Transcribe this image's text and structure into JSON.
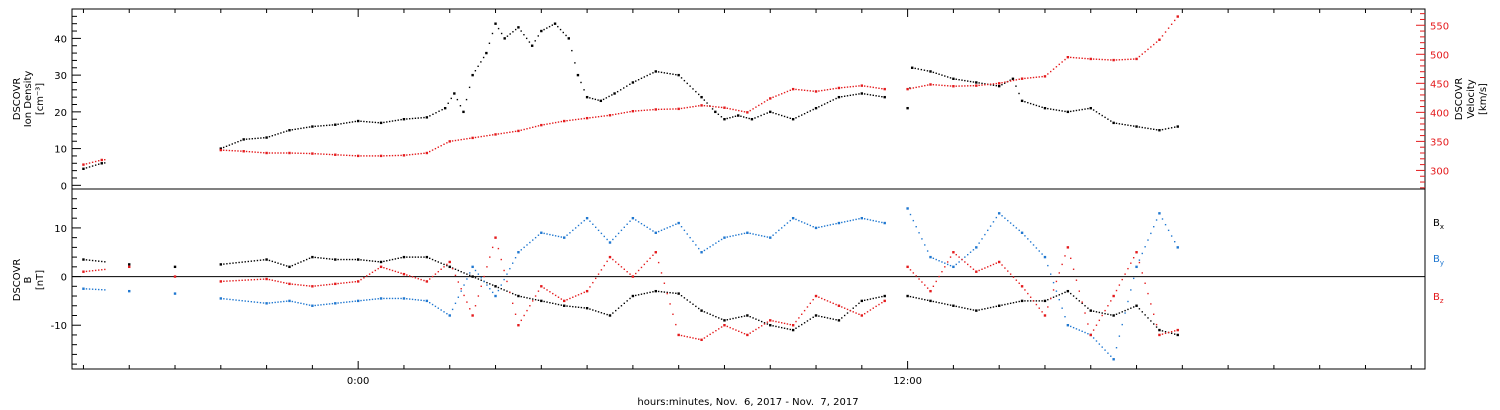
{
  "chart_data": [
    {
      "type": "scatter",
      "panel": "plasma",
      "ylabel_left": [
        "DSCOVR",
        "Ion Density",
        "[cm⁻³]"
      ],
      "ylabel_right": [
        "DSCOVR",
        "Velocity",
        "[km/s]"
      ],
      "yticks_left": [
        0,
        10,
        20,
        30,
        40
      ],
      "ylim_left": [
        -1,
        48
      ],
      "yticks_right": [
        300,
        350,
        400,
        450,
        500,
        550
      ],
      "ylim_right": [
        268,
        578
      ],
      "series": [
        {
          "axis": "left",
          "color": "#000000",
          "x": [
            -6.0,
            -5.6,
            -3.0,
            -2.5,
            -2.0,
            -1.5,
            -1.0,
            -0.5,
            0.0,
            0.5,
            1.0,
            1.5,
            1.9,
            2.1,
            2.3,
            2.5,
            2.8,
            3.0,
            3.2,
            3.5,
            3.8,
            4.0,
            4.3,
            4.6,
            4.8,
            5.0,
            5.3,
            5.6,
            6.0,
            6.5,
            7.0,
            7.5,
            7.8,
            8.0,
            8.3,
            8.6,
            9.0,
            9.5,
            10.0,
            10.5,
            11.0,
            11.5,
            12.0,
            12.1,
            12.5,
            13.0,
            13.5,
            14.0,
            14.3,
            14.5,
            15.0,
            15.5,
            16.0,
            16.5,
            17.0,
            17.5,
            17.9
          ],
          "y": [
            4.5,
            6.0,
            10.0,
            12.5,
            13.0,
            15.0,
            16.0,
            16.5,
            17.5,
            17.0,
            18.0,
            18.5,
            21.0,
            25.0,
            20.0,
            30.0,
            36.0,
            44.0,
            40.0,
            43.0,
            38.0,
            42.0,
            44.0,
            40.0,
            30.0,
            24.0,
            23.0,
            25.0,
            28.0,
            31.0,
            30.0,
            24.0,
            20.0,
            18.0,
            19.0,
            18.0,
            20.0,
            18.0,
            21.0,
            24.0,
            25.0,
            24.0,
            21.0,
            32.0,
            31.0,
            29.0,
            28.0,
            27.0,
            29.0,
            23.0,
            21.0,
            20.0,
            21.0,
            17.0,
            16.0,
            15.0,
            16.0
          ]
        },
        {
          "axis": "right",
          "color": "#e41a1c",
          "x": [
            -6.0,
            -5.6,
            -3.0,
            -2.5,
            -2.0,
            -1.5,
            -1.0,
            -0.5,
            0.0,
            0.5,
            1.0,
            1.5,
            2.0,
            2.5,
            3.0,
            3.5,
            4.0,
            4.5,
            5.0,
            5.5,
            6.0,
            6.5,
            7.0,
            7.5,
            8.0,
            8.5,
            9.0,
            9.5,
            10.0,
            10.5,
            11.0,
            11.5,
            12.0,
            12.5,
            13.0,
            13.5,
            14.0,
            14.5,
            15.0,
            15.5,
            16.0,
            16.5,
            17.0,
            17.5,
            17.9
          ],
          "y": [
            310,
            318,
            335,
            333,
            330,
            330,
            329,
            327,
            325,
            325,
            326,
            330,
            350,
            356,
            362,
            368,
            378,
            385,
            390,
            395,
            402,
            405,
            406,
            412,
            408,
            400,
            424,
            440,
            436,
            442,
            446,
            440,
            440,
            448,
            445,
            446,
            450,
            458,
            462,
            495,
            492,
            490,
            492,
            525,
            565
          ]
        }
      ]
    },
    {
      "type": "scatter",
      "panel": "magnetic field",
      "ylabel_left": [
        "DSCOVR",
        "B",
        "[nT]"
      ],
      "yticks_left": [
        -10,
        0,
        10
      ],
      "ylim_left": [
        -19,
        18
      ],
      "zero_line": true,
      "legend": [
        "Bx",
        "By",
        "Bz"
      ],
      "legend_placement": "right",
      "series": [
        {
          "name": "Bx",
          "color": "#000000",
          "x": [
            -6.0,
            -5.0,
            -4.0,
            -3.0,
            -2.0,
            -1.5,
            -1.0,
            -0.5,
            0.0,
            0.5,
            1.0,
            1.5,
            2.0,
            2.5,
            3.0,
            3.5,
            4.0,
            4.5,
            5.0,
            5.5,
            6.0,
            6.5,
            7.0,
            7.5,
            8.0,
            8.5,
            9.0,
            9.5,
            10.0,
            10.5,
            11.0,
            11.5,
            12.0,
            12.5,
            13.0,
            13.5,
            14.0,
            14.5,
            15.0,
            15.5,
            16.0,
            16.5,
            17.0,
            17.5,
            17.9
          ],
          "y": [
            3.5,
            2.5,
            2.0,
            2.5,
            3.5,
            2.0,
            4.0,
            3.5,
            3.5,
            3.0,
            4.0,
            4.0,
            2.0,
            0.0,
            -2.0,
            -4.0,
            -5.0,
            -6.0,
            -6.5,
            -8.0,
            -4.0,
            -3.0,
            -3.5,
            -7.0,
            -9.0,
            -8.0,
            -10.0,
            -11.0,
            -8.0,
            -9.0,
            -5.0,
            -4.0,
            -4.0,
            -5.0,
            -6.0,
            -7.0,
            -6.0,
            -5.0,
            -5.0,
            -3.0,
            -7.0,
            -8.0,
            -6.0,
            -11.0,
            -12.0
          ]
        },
        {
          "name": "By",
          "color": "#1f77d0",
          "x": [
            -6.0,
            -5.0,
            -4.0,
            -3.0,
            -2.0,
            -1.5,
            -1.0,
            -0.5,
            0.0,
            0.5,
            1.0,
            1.5,
            2.0,
            2.5,
            3.0,
            3.5,
            4.0,
            4.5,
            5.0,
            5.5,
            6.0,
            6.5,
            7.0,
            7.5,
            8.0,
            8.5,
            9.0,
            9.5,
            10.0,
            10.5,
            11.0,
            11.5,
            12.0,
            12.5,
            13.0,
            13.5,
            14.0,
            14.5,
            15.0,
            15.5,
            16.0,
            16.5,
            17.0,
            17.5,
            17.9
          ],
          "y": [
            -2.5,
            -3.0,
            -3.5,
            -4.5,
            -5.5,
            -5.0,
            -6.0,
            -5.5,
            -5.0,
            -4.5,
            -4.5,
            -5.0,
            -8.0,
            2.0,
            -4.0,
            5.0,
            9.0,
            8.0,
            12.0,
            7.0,
            12.0,
            9.0,
            11.0,
            5.0,
            8.0,
            9.0,
            8.0,
            12.0,
            10.0,
            11.0,
            12.0,
            11.0,
            14.0,
            4.0,
            2.0,
            6.0,
            13.0,
            9.0,
            4.0,
            -10.0,
            -12.0,
            -17.0,
            2.0,
            13.0,
            6.0
          ]
        },
        {
          "name": "Bz",
          "color": "#e41a1c",
          "x": [
            -6.0,
            -5.0,
            -4.0,
            -3.0,
            -2.0,
            -1.5,
            -1.0,
            -0.5,
            0.0,
            0.5,
            1.0,
            1.5,
            2.0,
            2.5,
            3.0,
            3.5,
            4.0,
            4.5,
            5.0,
            5.5,
            6.0,
            6.5,
            7.0,
            7.5,
            8.0,
            8.5,
            9.0,
            9.5,
            10.0,
            10.5,
            11.0,
            11.5,
            12.0,
            12.5,
            13.0,
            13.5,
            14.0,
            14.5,
            15.0,
            15.5,
            16.0,
            16.5,
            17.0,
            17.5,
            17.9
          ],
          "y": [
            1.0,
            2.0,
            0.0,
            -1.0,
            -0.5,
            -1.5,
            -2.0,
            -1.5,
            -1.0,
            2.0,
            0.5,
            -1.0,
            3.0,
            -8.0,
            8.0,
            -10.0,
            -2.0,
            -5.0,
            -3.0,
            4.0,
            0.0,
            5.0,
            -12.0,
            -13.0,
            -10.0,
            -12.0,
            -9.0,
            -10.0,
            -4.0,
            -6.0,
            -8.0,
            -5.0,
            2.0,
            -3.0,
            5.0,
            1.0,
            3.0,
            -2.0,
            -8.0,
            6.0,
            -12.0,
            -4.0,
            5.0,
            -12.0,
            -11.0
          ]
        }
      ]
    }
  ],
  "x_axis": {
    "range_hours": [
      -6.25,
      23.3
    ],
    "major_ticks_hours": [
      0,
      12
    ],
    "tick_labels": [
      "0:00",
      "12:00"
    ],
    "xlabel": "hours:minutes, Nov.  6, 2017 - Nov.  7, 2017"
  },
  "legend": {
    "bx": {
      "base": "B",
      "sub": "x",
      "color": "#000000"
    },
    "by": {
      "base": "B",
      "sub": "y",
      "color": "#1f77d0"
    },
    "bz": {
      "base": "B",
      "sub": "z",
      "color": "#e41a1c"
    }
  },
  "colors": {
    "density": "#000000",
    "velocity": "#e41a1c",
    "bx": "#000000",
    "by": "#1f77d0",
    "bz": "#e41a1c"
  }
}
